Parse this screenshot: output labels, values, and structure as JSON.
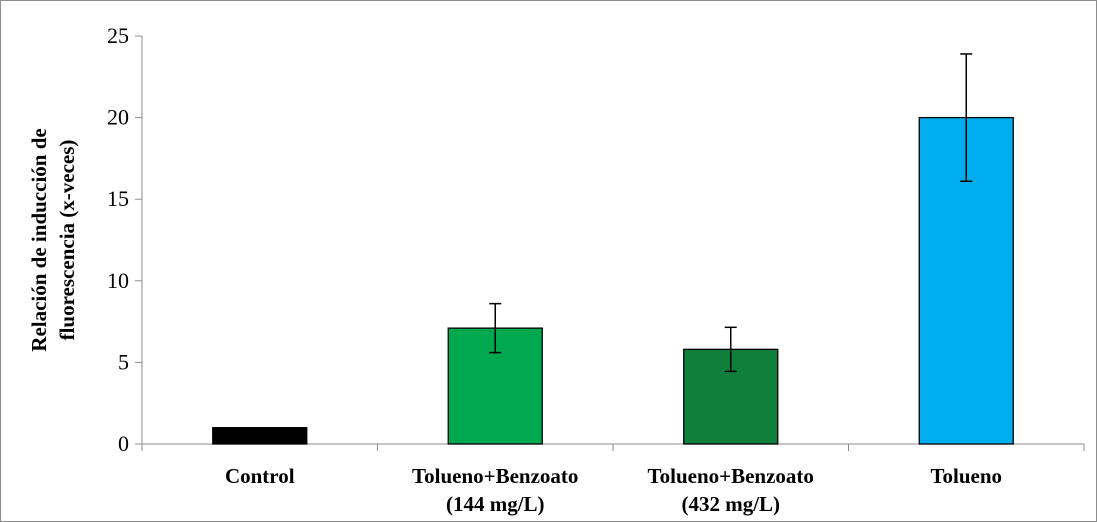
{
  "chart_data": {
    "type": "bar",
    "categories": [
      [
        "Control"
      ],
      [
        "Tolueno+Benzoato",
        "(144 mg/L)"
      ],
      [
        "Tolueno+Benzoato",
        "(432 mg/L)"
      ],
      [
        "Tolueno"
      ]
    ],
    "values": [
      1.0,
      7.1,
      5.8,
      20.0
    ],
    "error": [
      0.0,
      1.5,
      1.35,
      3.9
    ],
    "bar_colors": [
      "#000000",
      "#00a84f",
      "#107f3b",
      "#00aeef"
    ],
    "xlabel": "",
    "ylabel": [
      "Relación de inducción de",
      "fluorescencia (x-veces)"
    ],
    "ylim": [
      0,
      25
    ],
    "yticks": [
      0,
      5,
      10,
      15,
      20,
      25
    ],
    "grid": false,
    "legend": "none"
  }
}
